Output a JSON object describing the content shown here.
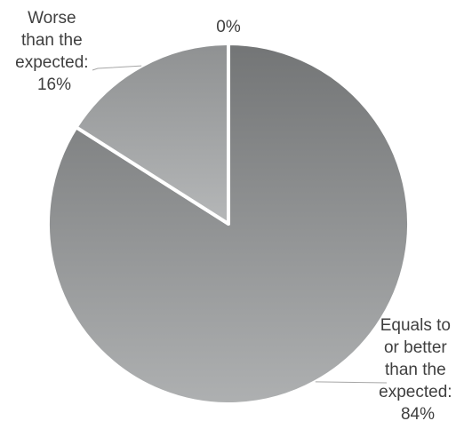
{
  "chart_data": {
    "type": "pie",
    "title": "",
    "slices": [
      {
        "category": "Equals to or better than the expected",
        "value": 84,
        "label_lines": [
          "Equals to",
          "or better",
          "than the",
          "expected:",
          "84%"
        ]
      },
      {
        "category": "Worse than the expected",
        "value": 16,
        "label_lines": [
          "Worse",
          "than the",
          "expected:",
          "16%"
        ]
      },
      {
        "category": "",
        "value": 0,
        "label_lines": [
          "0%"
        ]
      }
    ],
    "legend": "none",
    "colors": {
      "large_slice_dark": "#737576",
      "large_slice_light": "#aeb0b1",
      "small_slice_dark": "#8f9192",
      "small_slice_light": "#b5b7b8",
      "slice_border": "#ffffff",
      "label_text": "#3f3f3f",
      "leader_line": "#a6a6a6"
    }
  }
}
